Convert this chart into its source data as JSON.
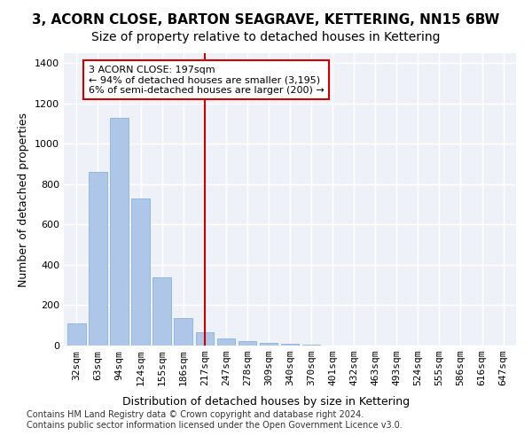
{
  "title": "3, ACORN CLOSE, BARTON SEAGRAVE, KETTERING, NN15 6BW",
  "subtitle": "Size of property relative to detached houses in Kettering",
  "xlabel_bottom": "Distribution of detached houses by size in Kettering",
  "ylabel": "Number of detached properties",
  "footnote": "Contains HM Land Registry data © Crown copyright and database right 2024.\nContains public sector information licensed under the Open Government Licence v3.0.",
  "bar_labels": [
    "32sqm",
    "63sqm",
    "94sqm",
    "124sqm",
    "155sqm",
    "186sqm",
    "217sqm",
    "247sqm",
    "278sqm",
    "309sqm",
    "340sqm",
    "370sqm",
    "401sqm",
    "432sqm",
    "463sqm",
    "493sqm",
    "524sqm",
    "555sqm",
    "586sqm",
    "616sqm",
    "647sqm"
  ],
  "bar_values": [
    110,
    860,
    1130,
    730,
    340,
    135,
    65,
    35,
    20,
    15,
    10,
    5,
    0,
    0,
    0,
    0,
    0,
    0,
    0,
    0,
    0
  ],
  "bar_color": "#aec6e8",
  "bar_edge_color": "#7aaed0",
  "background_color": "#eef2f8",
  "grid_color": "#ffffff",
  "vline_x": 6,
  "vline_color": "#cc0000",
  "annotation_text": "3 ACORN CLOSE: 197sqm\n← 94% of detached houses are smaller (3,195)\n6% of semi-detached houses are larger (200) →",
  "annotation_box_color": "#ffffff",
  "annotation_box_edge": "#cc0000",
  "ylim": [
    0,
    1450
  ],
  "yticks": [
    0,
    200,
    400,
    600,
    800,
    1000,
    1200,
    1400
  ],
  "title_fontsize": 11,
  "subtitle_fontsize": 10,
  "axis_fontsize": 9,
  "tick_fontsize": 8,
  "annotation_fontsize": 8,
  "footnote_fontsize": 7
}
